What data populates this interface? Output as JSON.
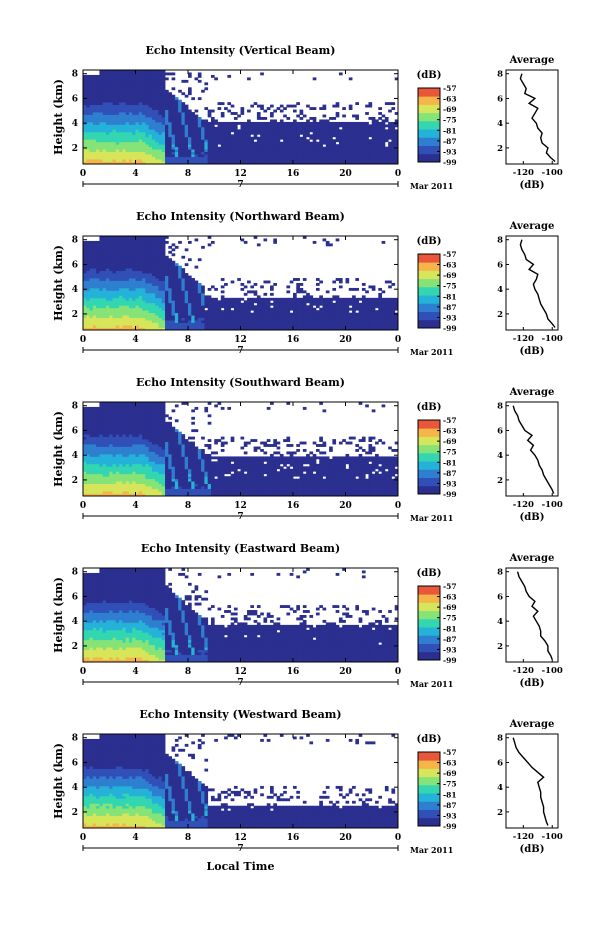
{
  "figure": {
    "xlabel": "Local Time",
    "month_label": "Mar 2011",
    "colorbar_unit": "(dB)",
    "colormap": [
      "#2b2f8f",
      "#3050b8",
      "#2f7fd0",
      "#25b2d8",
      "#33d6b0",
      "#86e377",
      "#d6e55a",
      "#f5b549",
      "#e9573a"
    ],
    "missing_color": "#ffffff",
    "profile_line_color": "#000000"
  },
  "chart_data": [
    {
      "type": "heatmap",
      "title": "Echo Intensity (Vertical Beam)",
      "ylabel": "Height (km)",
      "x_ticks": [
        "0",
        "4",
        "8",
        "12",
        "16",
        "20",
        "0"
      ],
      "x_sub_label": "7",
      "xlim": [
        0,
        24
      ],
      "y_ticks": [
        "2",
        "4",
        "6",
        "8"
      ],
      "ylim": [
        0.7,
        8.3
      ],
      "colorbar_ticks": [
        "-57",
        "-63",
        "-69",
        "-75",
        "-81",
        "-87",
        "-93",
        "-99"
      ],
      "colorbar_range": [
        -99,
        -57
      ],
      "profile": {
        "title": "Average",
        "xlabel": "(dB)",
        "x_ticks": [
          "-120",
          "-100"
        ],
        "xlim": [
          -132,
          -96
        ],
        "y_ticks": [
          "2",
          "4",
          "6",
          "8"
        ],
        "ylim": [
          0.7,
          8.3
        ],
        "heights": [
          0.9,
          1.2,
          1.6,
          2.0,
          2.4,
          2.8,
          3.2,
          3.6,
          4.0,
          4.4,
          4.8,
          5.2,
          5.6,
          6.0,
          6.4,
          6.8,
          7.2,
          7.6,
          8.0
        ],
        "values": [
          -98,
          -101,
          -104,
          -103,
          -107,
          -108,
          -107,
          -110,
          -111,
          -114,
          -112,
          -110,
          -116,
          -112,
          -119,
          -118,
          -120,
          -122,
          -121
        ]
      }
    },
    {
      "type": "heatmap",
      "title": "Echo Intensity (Northward Beam)",
      "ylabel": "Height (km)",
      "x_ticks": [
        "0",
        "4",
        "8",
        "12",
        "16",
        "20",
        "0"
      ],
      "x_sub_label": "7",
      "xlim": [
        0,
        24
      ],
      "y_ticks": [
        "2",
        "4",
        "6",
        "8"
      ],
      "ylim": [
        0.7,
        8.3
      ],
      "colorbar_ticks": [
        "-57",
        "-63",
        "-69",
        "-75",
        "-81",
        "-87",
        "-93",
        "-99"
      ],
      "colorbar_range": [
        -99,
        -57
      ],
      "profile": {
        "title": "Average",
        "xlabel": "(dB)",
        "x_ticks": [
          "-120",
          "-100"
        ],
        "xlim": [
          -132,
          -96
        ],
        "y_ticks": [
          "2",
          "4",
          "6",
          "8"
        ],
        "ylim": [
          0.7,
          8.3
        ],
        "heights": [
          0.9,
          1.2,
          1.6,
          2.0,
          2.4,
          2.8,
          3.2,
          3.6,
          4.0,
          4.4,
          4.8,
          5.2,
          5.6,
          6.0,
          6.4,
          6.8,
          7.2,
          7.6,
          8.0
        ],
        "values": [
          -98,
          -100,
          -103,
          -104,
          -106,
          -108,
          -109,
          -110,
          -112,
          -113,
          -111,
          -110,
          -116,
          -113,
          -118,
          -119,
          -121,
          -122,
          -121
        ]
      }
    },
    {
      "type": "heatmap",
      "title": "Echo Intensity (Southward Beam)",
      "ylabel": "Height (km)",
      "x_ticks": [
        "0",
        "4",
        "8",
        "12",
        "16",
        "20",
        "0"
      ],
      "x_sub_label": "7",
      "xlim": [
        0,
        24
      ],
      "y_ticks": [
        "2",
        "4",
        "6",
        "8"
      ],
      "ylim": [
        0.7,
        8.3
      ],
      "colorbar_ticks": [
        "-57",
        "-63",
        "-69",
        "-75",
        "-81",
        "-87",
        "-93",
        "-99"
      ],
      "colorbar_range": [
        -99,
        -57
      ],
      "profile": {
        "title": "Average",
        "xlabel": "(dB)",
        "x_ticks": [
          "-120",
          "-100"
        ],
        "xlim": [
          -132,
          -96
        ],
        "y_ticks": [
          "2",
          "4",
          "6",
          "8"
        ],
        "ylim": [
          0.7,
          8.3
        ],
        "heights": [
          0.9,
          1.2,
          1.6,
          2.0,
          2.4,
          2.8,
          3.2,
          3.6,
          4.0,
          4.4,
          4.8,
          5.2,
          5.6,
          6.0,
          6.4,
          6.8,
          7.2,
          7.6,
          8.0
        ],
        "values": [
          -99,
          -100,
          -102,
          -104,
          -106,
          -107,
          -109,
          -110,
          -112,
          -115,
          -113,
          -117,
          -114,
          -119,
          -121,
          -123,
          -124,
          -126,
          -127
        ]
      }
    },
    {
      "type": "heatmap",
      "title": "Echo Intensity (Eastward Beam)",
      "ylabel": "Height (km)",
      "x_ticks": [
        "0",
        "4",
        "8",
        "12",
        "16",
        "20",
        "0"
      ],
      "x_sub_label": "7",
      "xlim": [
        0,
        24
      ],
      "y_ticks": [
        "2",
        "4",
        "6",
        "8"
      ],
      "ylim": [
        0.7,
        8.3
      ],
      "colorbar_ticks": [
        "-57",
        "-63",
        "-69",
        "-75",
        "-81",
        "-87",
        "-93",
        "-99"
      ],
      "colorbar_range": [
        -99,
        -57
      ],
      "profile": {
        "title": "Average",
        "xlabel": "(dB)",
        "x_ticks": [
          "-120",
          "-100"
        ],
        "xlim": [
          -132,
          -96
        ],
        "y_ticks": [
          "2",
          "4",
          "6",
          "8"
        ],
        "ylim": [
          0.7,
          8.3
        ],
        "heights": [
          0.9,
          1.2,
          1.6,
          2.0,
          2.4,
          2.8,
          3.2,
          3.6,
          4.0,
          4.4,
          4.8,
          5.2,
          5.6,
          6.0,
          6.4,
          6.8,
          7.2,
          7.6,
          8.0
        ],
        "values": [
          -100,
          -101,
          -103,
          -103,
          -105,
          -108,
          -108,
          -109,
          -111,
          -113,
          -110,
          -114,
          -112,
          -116,
          -118,
          -119,
          -121,
          -123,
          -124
        ]
      }
    },
    {
      "type": "heatmap",
      "title": "Echo Intensity (Westward Beam)",
      "ylabel": "Height (km)",
      "x_ticks": [
        "0",
        "4",
        "8",
        "12",
        "16",
        "20",
        "0"
      ],
      "x_sub_label": "7",
      "xlim": [
        0,
        24
      ],
      "y_ticks": [
        "2",
        "4",
        "6",
        "8"
      ],
      "ylim": [
        0.7,
        8.3
      ],
      "colorbar_ticks": [
        "-57",
        "-63",
        "-69",
        "-75",
        "-81",
        "-87",
        "-93",
        "-99"
      ],
      "colorbar_range": [
        -99,
        -57
      ],
      "profile": {
        "title": "Average",
        "xlabel": "(dB)",
        "x_ticks": [
          "-120",
          "-100"
        ],
        "xlim": [
          -132,
          -96
        ],
        "y_ticks": [
          "2",
          "4",
          "6",
          "8"
        ],
        "ylim": [
          0.7,
          8.3
        ],
        "heights": [
          0.9,
          1.2,
          1.6,
          2.0,
          2.4,
          2.8,
          3.2,
          3.6,
          4.0,
          4.4,
          4.8,
          5.2,
          5.6,
          6.0,
          6.4,
          6.8,
          7.2,
          7.6,
          8.0
        ],
        "values": [
          -103,
          -104,
          -105,
          -106,
          -106,
          -107,
          -108,
          -108,
          -109,
          -110,
          -106,
          -110,
          -114,
          -117,
          -120,
          -123,
          -125,
          -126,
          -127
        ]
      }
    }
  ]
}
